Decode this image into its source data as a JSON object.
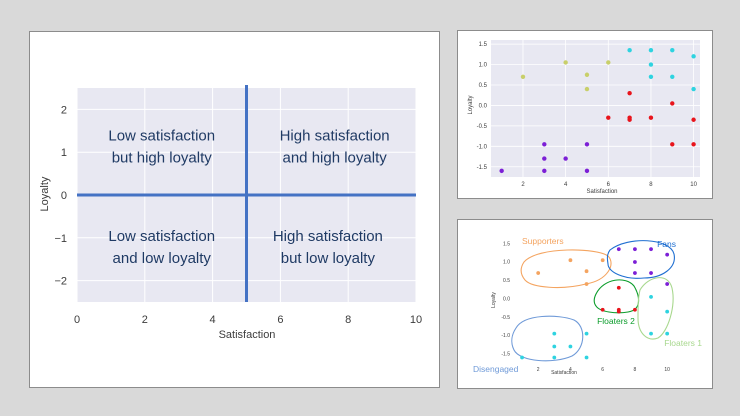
{
  "chart_data": [
    {
      "type": "scatter",
      "title": "",
      "xlabel": "Satisfaction",
      "ylabel": "Loyalty",
      "xlim": [
        0,
        10
      ],
      "ylim": [
        -2.5,
        2.5
      ],
      "xticks": [
        "0",
        "2",
        "4",
        "6",
        "8",
        "10"
      ],
      "yticks": [
        "2",
        "1",
        "0",
        "−1",
        "−2"
      ],
      "grid": true,
      "divider_lines": {
        "x": 5,
        "y": 0,
        "color": "#4472c4"
      },
      "quadrants": [
        {
          "id": "top-left",
          "line1": "Low satisfaction",
          "line2": "but high loyalty"
        },
        {
          "id": "top-right",
          "line1": "High satisfaction",
          "line2": "and high loyalty"
        },
        {
          "id": "bottom-left",
          "line1": "Low satisfaction",
          "line2": "and low loyalty"
        },
        {
          "id": "bottom-right",
          "line1": "High satisfaction",
          "line2": "but low loyalty"
        }
      ]
    },
    {
      "type": "scatter",
      "title": "",
      "xlabel": "Satisfaction",
      "ylabel": "Loyalty",
      "xlim": [
        0.5,
        10.3
      ],
      "ylim": [
        -1.75,
        1.6
      ],
      "xticks": [
        "2",
        "4",
        "6",
        "8",
        "10"
      ],
      "yticks": [
        "1.5",
        "1.0",
        "0.5",
        "0.0",
        "-0.5",
        "-1.0",
        "-1.5"
      ],
      "grid": true,
      "colors": {
        "supporters": "#c8cf6a",
        "fans": "#2ed3e0",
        "floaters2": "#e8141c",
        "floaters1": "#e8141c",
        "disengaged": "#7c1fd6"
      },
      "points": [
        {
          "x": 1,
          "y": -1.6,
          "cluster": "disengaged"
        },
        {
          "x": 3,
          "y": -1.6,
          "cluster": "disengaged"
        },
        {
          "x": 3,
          "y": -1.3,
          "cluster": "disengaged"
        },
        {
          "x": 3,
          "y": -0.95,
          "cluster": "disengaged"
        },
        {
          "x": 4,
          "y": -1.3,
          "cluster": "disengaged"
        },
        {
          "x": 5,
          "y": -1.6,
          "cluster": "disengaged"
        },
        {
          "x": 5,
          "y": -0.95,
          "cluster": "disengaged"
        },
        {
          "x": 2,
          "y": 0.7,
          "cluster": "supporters"
        },
        {
          "x": 4,
          "y": 1.05,
          "cluster": "supporters"
        },
        {
          "x": 5,
          "y": 0.75,
          "cluster": "supporters"
        },
        {
          "x": 5,
          "y": 0.4,
          "cluster": "supporters"
        },
        {
          "x": 6,
          "y": 1.05,
          "cluster": "supporters"
        },
        {
          "x": 7,
          "y": 1.35,
          "cluster": "fans"
        },
        {
          "x": 8,
          "y": 1.35,
          "cluster": "fans"
        },
        {
          "x": 8,
          "y": 1.0,
          "cluster": "fans"
        },
        {
          "x": 8,
          "y": 0.7,
          "cluster": "fans"
        },
        {
          "x": 9,
          "y": 1.35,
          "cluster": "fans"
        },
        {
          "x": 9,
          "y": 0.7,
          "cluster": "fans"
        },
        {
          "x": 10,
          "y": 1.2,
          "cluster": "fans"
        },
        {
          "x": 10,
          "y": 0.4,
          "cluster": "fans"
        },
        {
          "x": 6,
          "y": -0.3,
          "cluster": "floaters2"
        },
        {
          "x": 7,
          "y": 0.3,
          "cluster": "floaters2"
        },
        {
          "x": 7,
          "y": -0.3,
          "cluster": "floaters2"
        },
        {
          "x": 7,
          "y": -0.35,
          "cluster": "floaters2"
        },
        {
          "x": 8,
          "y": -0.3,
          "cluster": "floaters2"
        },
        {
          "x": 9,
          "y": 0.05,
          "cluster": "floaters1"
        },
        {
          "x": 9,
          "y": -0.95,
          "cluster": "floaters1"
        },
        {
          "x": 10,
          "y": -0.35,
          "cluster": "floaters1"
        },
        {
          "x": 10,
          "y": -0.95,
          "cluster": "floaters1"
        }
      ]
    },
    {
      "type": "scatter",
      "title": "",
      "xlabel": "Satisfaction",
      "ylabel": "Loyalty",
      "xlim": [
        0.5,
        10.3
      ],
      "ylim": [
        -1.75,
        1.6
      ],
      "xticks": [
        "2",
        "4",
        "6",
        "8",
        "10"
      ],
      "yticks": [
        "1.5",
        "1.0",
        "0.5",
        "0.0",
        "-0.5",
        "-1.0",
        "-1.5"
      ],
      "grid": false,
      "clusters": [
        {
          "id": "supporters",
          "label": "Supporters",
          "color": "#f4a460",
          "point_color": "#f4a460"
        },
        {
          "id": "fans",
          "label": "Fans",
          "color": "#1f6fd1",
          "point_color": "#7c1fd6"
        },
        {
          "id": "floaters2",
          "label": "Floaters 2",
          "color": "#0a9c2a",
          "point_color": "#e8141c"
        },
        {
          "id": "floaters1",
          "label": "Floaters 1",
          "color": "#a8d88e",
          "point_color": "#2ed3e0"
        },
        {
          "id": "disengaged",
          "label": "Disengaged",
          "color": "#6f9ad8",
          "point_color": "#2ed3e0"
        }
      ]
    }
  ]
}
